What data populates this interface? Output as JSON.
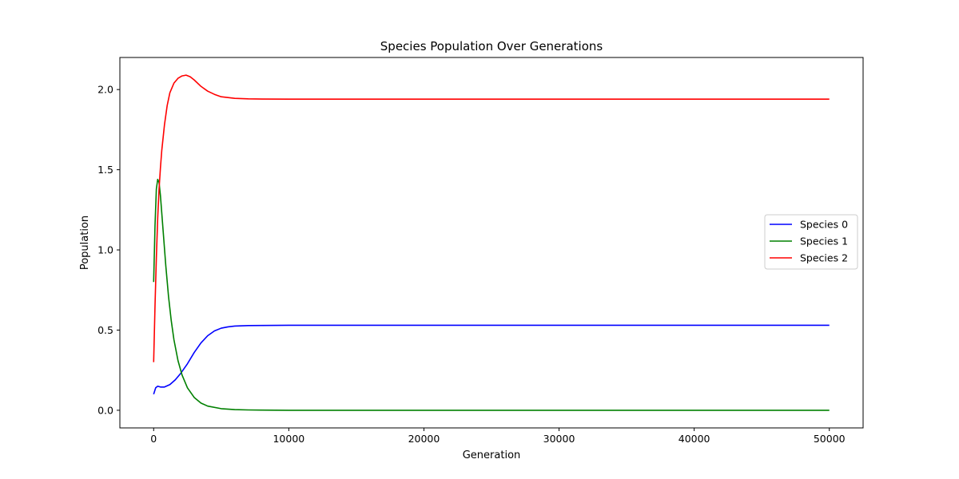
{
  "chart_data": {
    "type": "line",
    "title": "Species Population Over Generations",
    "xlabel": "Generation",
    "ylabel": "Population",
    "xlim": [
      -2500,
      52500
    ],
    "ylim": [
      -0.11,
      2.2
    ],
    "xticks": [
      0,
      10000,
      20000,
      30000,
      40000,
      50000
    ],
    "xtick_labels": [
      "0",
      "10000",
      "20000",
      "30000",
      "40000",
      "50000"
    ],
    "yticks": [
      0.0,
      0.5,
      1.0,
      1.5,
      2.0
    ],
    "ytick_labels": [
      "0.0",
      "0.5",
      "1.0",
      "1.5",
      "2.0"
    ],
    "grid": false,
    "legend_position": "center-right",
    "series": [
      {
        "name": "Species 0",
        "color": "#0000ff",
        "x": [
          0,
          150,
          300,
          500,
          800,
          1200,
          1600,
          2000,
          2500,
          3000,
          3500,
          4000,
          4500,
          5000,
          5500,
          6000,
          7000,
          8000,
          10000,
          15000,
          20000,
          30000,
          40000,
          50000
        ],
        "y": [
          0.1,
          0.14,
          0.15,
          0.145,
          0.145,
          0.16,
          0.19,
          0.23,
          0.29,
          0.36,
          0.42,
          0.465,
          0.495,
          0.512,
          0.52,
          0.525,
          0.528,
          0.529,
          0.53,
          0.53,
          0.53,
          0.53,
          0.53,
          0.53
        ]
      },
      {
        "name": "Species 1",
        "color": "#008000",
        "x": [
          0,
          100,
          200,
          300,
          400,
          500,
          700,
          900,
          1100,
          1300,
          1500,
          1800,
          2100,
          2500,
          3000,
          3500,
          4000,
          5000,
          6000,
          7000,
          8000,
          10000,
          15000,
          20000,
          30000,
          40000,
          50000
        ],
        "y": [
          0.8,
          1.15,
          1.38,
          1.44,
          1.42,
          1.34,
          1.12,
          0.9,
          0.71,
          0.56,
          0.44,
          0.31,
          0.22,
          0.14,
          0.08,
          0.045,
          0.026,
          0.01,
          0.004,
          0.002,
          0.001,
          0.0,
          0.0,
          0.0,
          0.0,
          0.0,
          0.0
        ]
      },
      {
        "name": "Species 2",
        "color": "#ff0000",
        "x": [
          0,
          100,
          200,
          300,
          400,
          500,
          600,
          800,
          1000,
          1200,
          1500,
          1800,
          2100,
          2400,
          2700,
          3000,
          3500,
          4000,
          4500,
          5000,
          6000,
          7000,
          8000,
          10000,
          15000,
          20000,
          30000,
          40000,
          50000
        ],
        "y": [
          0.3,
          0.65,
          0.95,
          1.2,
          1.38,
          1.51,
          1.62,
          1.78,
          1.9,
          1.98,
          2.04,
          2.07,
          2.085,
          2.09,
          2.08,
          2.06,
          2.02,
          1.99,
          1.97,
          1.955,
          1.945,
          1.942,
          1.941,
          1.94,
          1.94,
          1.94,
          1.94,
          1.94,
          1.94
        ]
      }
    ]
  }
}
